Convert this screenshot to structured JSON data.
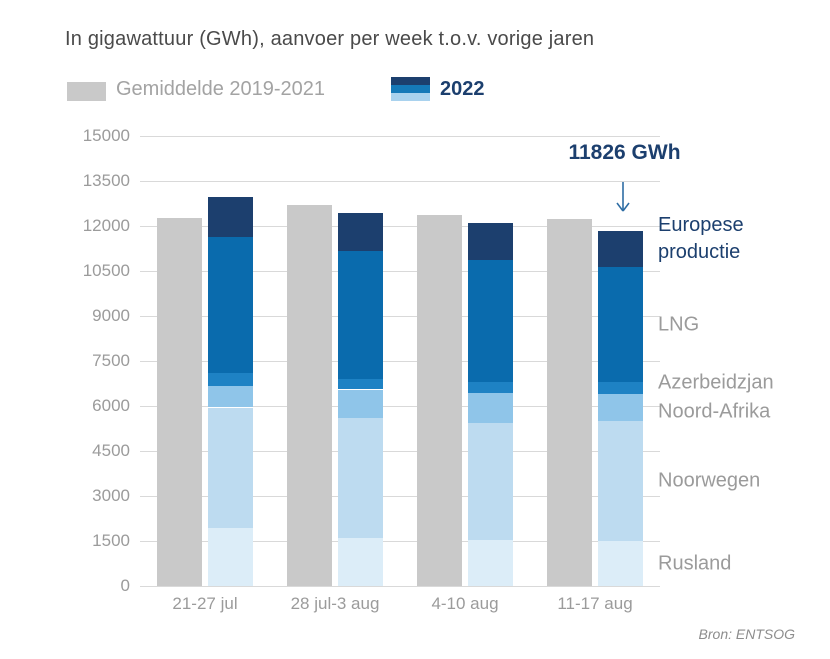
{
  "title": "In gigawattuur (GWh), aanvoer per week t.o.v. vorige jaren",
  "legend": {
    "average_label": "Gemiddelde 2019-2021",
    "year_label": "2022",
    "average_swatch_color": "#c9c9c9",
    "year_swatch_colors": [
      "#1c3f6e",
      "#1579b8",
      "#a9d2ee"
    ]
  },
  "annotation": {
    "text": "11826 GWh",
    "arrow_color": "#2e6da4"
  },
  "source": "Bron: ENTSOG",
  "colors": {
    "accent_navy": "#1c3f6e",
    "gridline": "#d9d9d9",
    "axis_text": "#9b9b9b",
    "title_text": "#4a4a4a"
  },
  "chart_data": {
    "type": "bar",
    "stacked": true,
    "title": "In gigawattuur (GWh), aanvoer per week t.o.v. vorige jaren",
    "xlabel": "",
    "ylabel": "GWh",
    "ylim": [
      0,
      15000
    ],
    "ytick_step": 1500,
    "grid": true,
    "categories": [
      "21-27 jul",
      "28 jul-3 aug",
      "4-10 aug",
      "11-17 aug"
    ],
    "average_series": {
      "name": "Gemiddelde 2019-2021",
      "color": "#c9c9c9",
      "values": [
        12280,
        12700,
        12370,
        12230
      ]
    },
    "stack_series": [
      {
        "name": "Rusland",
        "color": "#dcedf8",
        "values": [
          1920,
          1610,
          1530,
          1490
        ]
      },
      {
        "name": "Noorwegen",
        "color": "#bddbf0",
        "values": [
          4030,
          3980,
          3910,
          4010
        ]
      },
      {
        "name": "Noord-Afrika",
        "color": "#8fc5e9",
        "values": [
          730,
          960,
          1000,
          900
        ]
      },
      {
        "name": "Azerbeidzjan",
        "color": "#1e82c4",
        "values": [
          420,
          340,
          370,
          390
        ]
      },
      {
        "name": "LNG",
        "color": "#0a6bad",
        "values": [
          4540,
          4280,
          4060,
          3840
        ]
      },
      {
        "name": "Europese productie",
        "color": "#1c3f6e",
        "values": [
          1340,
          1250,
          1220,
          1196
        ]
      }
    ],
    "totals_2022": [
      12980,
      12420,
      12090,
      11826
    ],
    "highlighted_series": "Europese productie",
    "legend_position": "top"
  }
}
